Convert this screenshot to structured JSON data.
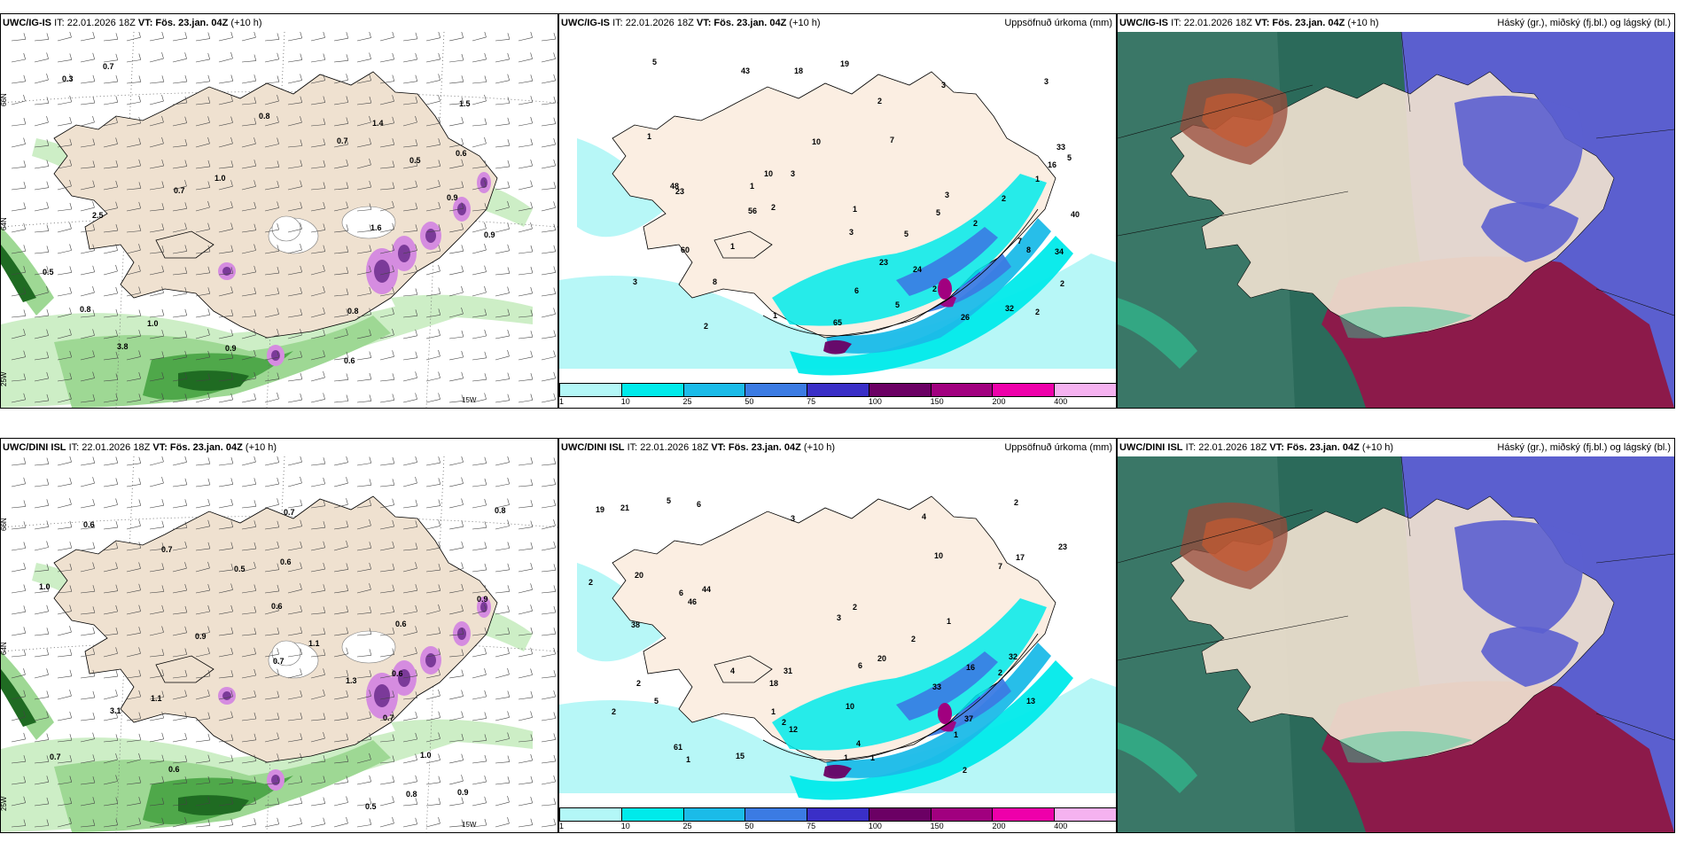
{
  "rows": [
    {
      "model": "UWC/IG-IS",
      "it": "IT: 22.01.2026 18Z",
      "vt_label": "VT:",
      "vt": "Fös. 23.jan. 04Z",
      "lead": "(+10 h)"
    },
    {
      "model": "UWC/DINI ISL",
      "it": "IT: 22.01.2026 18Z",
      "vt_label": "VT:",
      "vt": "Fös. 23.jan. 04Z",
      "lead": "(+10 h)"
    }
  ],
  "precip_title": "Uppsöfnuð úrkoma (mm)",
  "cloud_title": "Háský (gr.), miðský (fj.bl.) og lágský (bl.)",
  "colorbar": {
    "ticks": [
      "1",
      "10",
      "25",
      "50",
      "75",
      "100",
      "150",
      "200",
      "400"
    ],
    "colors": [
      "#b3f7f7",
      "#00eaea",
      "#1bbbe8",
      "#3b7be3",
      "#3a2fc7",
      "#6b0064",
      "#a1007f",
      "#ee00aa",
      "#f5b2f0"
    ]
  },
  "grid_labels": {
    "lat66": "66N",
    "lat64": "64N",
    "lon25": "25W",
    "lon15": "15W"
  },
  "wind_panel_labels": {
    "top": [
      "0.8",
      "1.0",
      "1.4",
      "0.9",
      "0.6",
      "0.5",
      "0.7",
      "0.3",
      "0.9",
      "1.5",
      "0.8",
      "0.9",
      "0.7",
      "0.6",
      "0.5",
      "1.0",
      "0.7",
      "0.8",
      "2.5",
      "1.6",
      "3.8"
    ],
    "bottom": [
      "0.7",
      "0.6",
      "0.5",
      "0.8",
      "0.5",
      "0.6",
      "0.7",
      "0.6",
      "1.1",
      "0.7",
      "0.6",
      "1.3",
      "1.0",
      "0.9",
      "0.7",
      "0.6",
      "0.9",
      "1.0",
      "0.7",
      "0.6",
      "0.9",
      "1.1",
      "3.1",
      "0.8"
    ]
  },
  "precip_labels": {
    "top": [
      "5",
      "2",
      "1",
      "3",
      "2",
      "2",
      "2",
      "16",
      "2",
      "1",
      "3",
      "3",
      "10",
      "1",
      "2",
      "26",
      "19",
      "23",
      "10",
      "2",
      "7",
      "1",
      "23",
      "43",
      "65",
      "8",
      "7",
      "3",
      "5",
      "34",
      "56",
      "60",
      "2",
      "5",
      "5",
      "1",
      "3",
      "3",
      "18",
      "24",
      "32",
      "40",
      "33",
      "48",
      "5",
      "6",
      "8",
      "1"
    ],
    "bottom": [
      "3",
      "4",
      "4",
      "2",
      "1",
      "2",
      "6",
      "1",
      "3",
      "2",
      "2",
      "1",
      "16",
      "1",
      "2",
      "1",
      "6",
      "12",
      "10",
      "13",
      "33",
      "7",
      "20",
      "31",
      "32",
      "44",
      "46",
      "61",
      "10",
      "6",
      "1",
      "17",
      "15",
      "2",
      "5",
      "5",
      "2",
      "2",
      "4",
      "18",
      "19",
      "20",
      "21",
      "23",
      "37",
      "38",
      "2"
    ]
  }
}
